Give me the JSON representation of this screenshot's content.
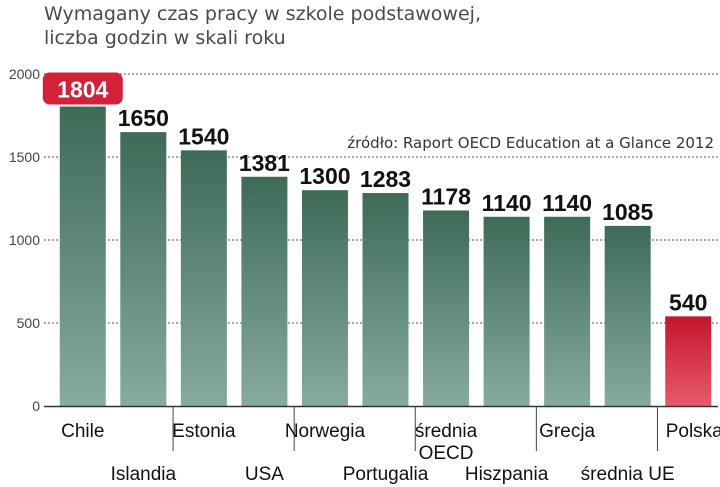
{
  "title_line1": "Wymagany czas pracy w szkole podstawowej,",
  "title_line2": "liczba godzin w skali roku",
  "source": "źródło: Raport OECD Education at a Glance 2012",
  "colors": {
    "bar_top": "#3e6a58",
    "bar_bottom": "#86aba0",
    "highlight_top": "#c4152c",
    "highlight_bottom": "#e85a6c",
    "label_highlight_bg": "#d3213a"
  },
  "chart_data": {
    "type": "bar",
    "title": "Wymagany czas pracy w szkole podstawowej, liczba godzin w skali roku",
    "categories": [
      "Chile",
      "Islandia",
      "Estonia",
      "USA",
      "Norwegia",
      "Portugalia",
      "średnia OECD",
      "Hiszpania",
      "Grecja",
      "średnia UE",
      "Polska"
    ],
    "values": [
      1804,
      1650,
      1540,
      1381,
      1300,
      1283,
      1178,
      1140,
      1140,
      1085,
      540
    ],
    "highlighted": [
      "Chile",
      "Polska"
    ],
    "ylim": [
      0,
      2000
    ],
    "yticks": [
      0,
      500,
      1000,
      1500,
      2000
    ],
    "grid": "dashed horizontal at 500, 1000, 1500",
    "xlabel": "",
    "ylabel": ""
  }
}
